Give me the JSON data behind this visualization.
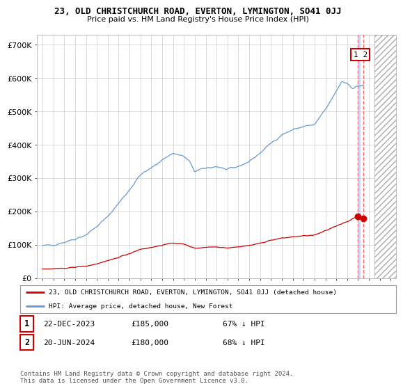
{
  "title": "23, OLD CHRISTCHURCH ROAD, EVERTON, LYMINGTON, SO41 0JJ",
  "subtitle": "Price paid vs. HM Land Registry's House Price Index (HPI)",
  "ylabel_ticks": [
    "£0",
    "£100K",
    "£200K",
    "£300K",
    "£400K",
    "£500K",
    "£600K",
    "£700K"
  ],
  "ytick_vals": [
    0,
    100000,
    200000,
    300000,
    400000,
    500000,
    600000,
    700000
  ],
  "ylim": [
    0,
    730000
  ],
  "legend_line1": "23, OLD CHRISTCHURCH ROAD, EVERTON, LYMINGTON, SO41 0JJ (detached house)",
  "legend_line2": "HPI: Average price, detached house, New Forest",
  "table_rows": [
    {
      "num": "1",
      "date": "22-DEC-2023",
      "price": "£185,000",
      "pct": "67% ↓ HPI"
    },
    {
      "num": "2",
      "date": "20-JUN-2024",
      "price": "£180,000",
      "pct": "68% ↓ HPI"
    }
  ],
  "footer": "Contains HM Land Registry data © Crown copyright and database right 2024.\nThis data is licensed under the Open Government Licence v3.0.",
  "hpi_color": "#6699cc",
  "price_color": "#cc0000",
  "background_color": "#ffffff",
  "grid_color": "#cccccc",
  "hatch_color": "#cccccc",
  "trans1_year": 2023.97,
  "trans2_year": 2024.47,
  "trans1_val": 185000,
  "trans2_val": 180000,
  "xmin": 1994.5,
  "xmax": 2027.5,
  "hatch_start": 2025.5
}
